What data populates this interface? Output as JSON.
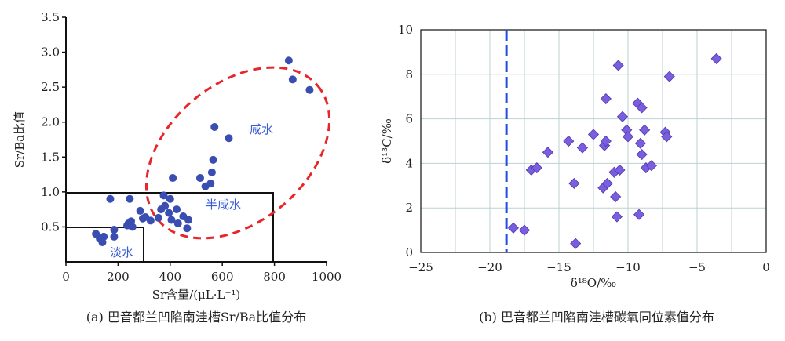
{
  "chart_data": [
    {
      "type": "scatter",
      "caption": "(a) 巴音都兰凹陷南洼槽Sr/Ba比值分布",
      "xlabel": "Sr含量/(μL·L⁻¹)",
      "ylabel": "Sr/Ba比值",
      "xlim": [
        0,
        1000
      ],
      "ylim": [
        0,
        3.5
      ],
      "xticks": [
        "0",
        "200",
        "400",
        "600",
        "800",
        "1000"
      ],
      "yticks": [
        "0.5",
        "1.0",
        "1.5",
        "2.0",
        "2.5",
        "3.0",
        "3.5"
      ],
      "grid": false,
      "marker_color": "#3a4db0",
      "region_labels": {
        "fresh": "淡水",
        "brackish": "半咸水",
        "saline": "咸水"
      },
      "points": [
        {
          "x": 115,
          "y": 0.4
        },
        {
          "x": 130,
          "y": 0.33
        },
        {
          "x": 140,
          "y": 0.28
        },
        {
          "x": 145,
          "y": 0.36
        },
        {
          "x": 170,
          "y": 0.9
        },
        {
          "x": 185,
          "y": 0.46
        },
        {
          "x": 185,
          "y": 0.36
        },
        {
          "x": 235,
          "y": 0.52
        },
        {
          "x": 240,
          "y": 0.55
        },
        {
          "x": 245,
          "y": 0.52
        },
        {
          "x": 245,
          "y": 0.9
        },
        {
          "x": 250,
          "y": 0.58
        },
        {
          "x": 255,
          "y": 0.5
        },
        {
          "x": 285,
          "y": 0.73
        },
        {
          "x": 295,
          "y": 0.62
        },
        {
          "x": 305,
          "y": 0.64
        },
        {
          "x": 325,
          "y": 0.59
        },
        {
          "x": 355,
          "y": 0.63
        },
        {
          "x": 365,
          "y": 0.75
        },
        {
          "x": 375,
          "y": 0.95
        },
        {
          "x": 380,
          "y": 0.8
        },
        {
          "x": 395,
          "y": 0.7
        },
        {
          "x": 400,
          "y": 0.9
        },
        {
          "x": 405,
          "y": 0.6
        },
        {
          "x": 410,
          "y": 1.2
        },
        {
          "x": 425,
          "y": 0.75
        },
        {
          "x": 430,
          "y": 0.55
        },
        {
          "x": 450,
          "y": 0.65
        },
        {
          "x": 465,
          "y": 0.48
        },
        {
          "x": 470,
          "y": 0.6
        },
        {
          "x": 515,
          "y": 1.2
        },
        {
          "x": 535,
          "y": 1.08
        },
        {
          "x": 555,
          "y": 1.12
        },
        {
          "x": 560,
          "y": 1.28
        },
        {
          "x": 565,
          "y": 1.46
        },
        {
          "x": 570,
          "y": 1.93
        },
        {
          "x": 625,
          "y": 1.77
        },
        {
          "x": 855,
          "y": 2.88
        },
        {
          "x": 870,
          "y": 2.61
        },
        {
          "x": 935,
          "y": 2.46
        }
      ]
    },
    {
      "type": "scatter",
      "caption": "(b) 巴音都兰凹陷南洼槽碳氧同位素值分布",
      "xlabel": "δ¹⁸O/‰",
      "ylabel": "δ¹³C/‰",
      "xlim": [
        -25,
        0
      ],
      "ylim": [
        0,
        10
      ],
      "xticks": [
        "−25",
        "−20",
        "−15",
        "−10",
        "−5",
        "0"
      ],
      "yticks": [
        "0",
        "2",
        "4",
        "6",
        "8",
        "10"
      ],
      "grid": true,
      "marker_color": "#7b5de0",
      "dashed_line_x": -18.8,
      "points": [
        {
          "x": -18.3,
          "y": 1.1
        },
        {
          "x": -17.5,
          "y": 1.0
        },
        {
          "x": -17.0,
          "y": 3.7
        },
        {
          "x": -16.6,
          "y": 3.8
        },
        {
          "x": -15.8,
          "y": 4.5
        },
        {
          "x": -14.3,
          "y": 5.0
        },
        {
          "x": -13.9,
          "y": 3.1
        },
        {
          "x": -13.8,
          "y": 0.4
        },
        {
          "x": -13.3,
          "y": 4.7
        },
        {
          "x": -12.5,
          "y": 5.3
        },
        {
          "x": -11.8,
          "y": 2.9
        },
        {
          "x": -11.7,
          "y": 4.8
        },
        {
          "x": -11.6,
          "y": 6.9
        },
        {
          "x": -11.6,
          "y": 5.0
        },
        {
          "x": -11.5,
          "y": 3.1
        },
        {
          "x": -11.0,
          "y": 3.6
        },
        {
          "x": -10.9,
          "y": 2.5
        },
        {
          "x": -10.8,
          "y": 1.6
        },
        {
          "x": -10.7,
          "y": 8.4
        },
        {
          "x": -10.6,
          "y": 3.7
        },
        {
          "x": -10.4,
          "y": 6.1
        },
        {
          "x": -10.1,
          "y": 5.5
        },
        {
          "x": -10.0,
          "y": 5.2
        },
        {
          "x": -9.3,
          "y": 6.7
        },
        {
          "x": -9.2,
          "y": 1.7
        },
        {
          "x": -9.1,
          "y": 4.9
        },
        {
          "x": -9.0,
          "y": 6.5
        },
        {
          "x": -9.0,
          "y": 4.4
        },
        {
          "x": -8.8,
          "y": 5.5
        },
        {
          "x": -8.7,
          "y": 3.8
        },
        {
          "x": -8.3,
          "y": 3.9
        },
        {
          "x": -7.3,
          "y": 5.4
        },
        {
          "x": -7.2,
          "y": 5.2
        },
        {
          "x": -7.0,
          "y": 7.9
        },
        {
          "x": -3.6,
          "y": 8.7
        }
      ]
    }
  ]
}
